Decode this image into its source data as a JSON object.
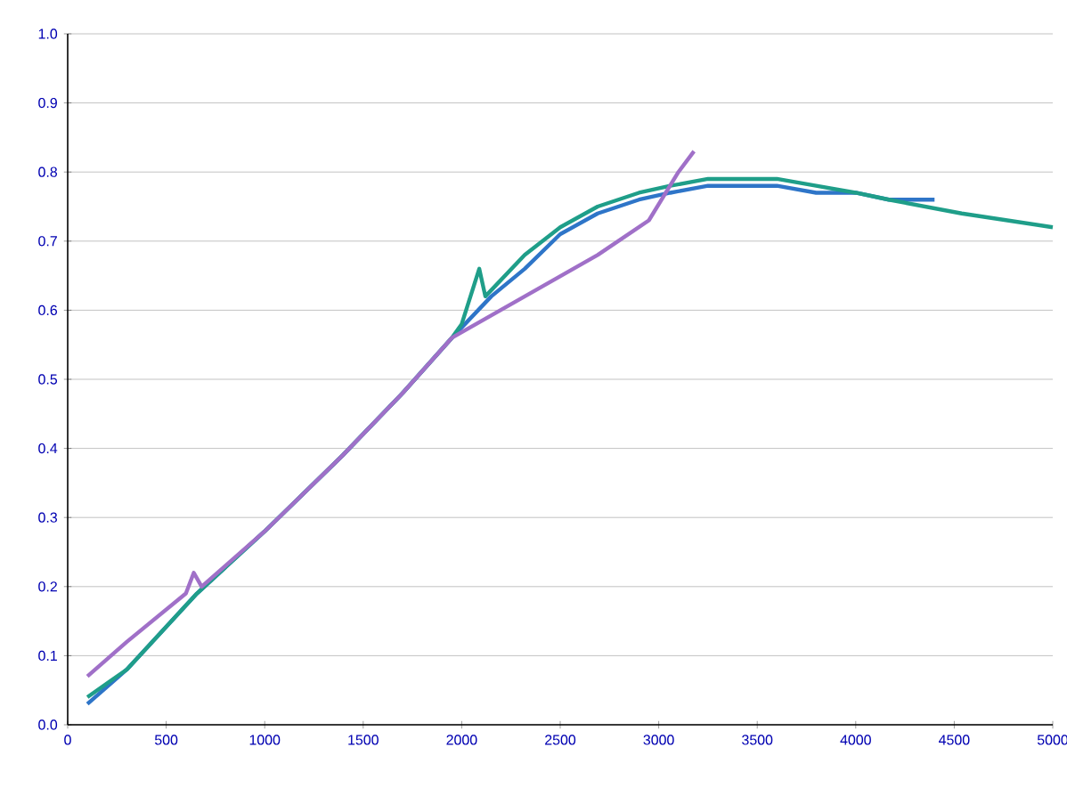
{
  "chart_data": {
    "type": "line",
    "xlim": [
      0,
      5000
    ],
    "ylim": [
      0,
      1.0
    ],
    "xticks": [
      0,
      500,
      1000,
      1500,
      2000,
      2500,
      3000,
      3500,
      4000,
      4500,
      5000
    ],
    "yticks": [
      {
        "value": 0,
        "label": "0.0"
      },
      {
        "value": 0.1,
        "label": "0.1"
      },
      {
        "value": 0.2,
        "label": "0.2"
      },
      {
        "value": 0.3,
        "label": "0.3"
      },
      {
        "value": 0.4,
        "label": "0.4"
      },
      {
        "value": 0.5,
        "label": "0.5"
      },
      {
        "value": 0.6,
        "label": "0.6"
      },
      {
        "value": 0.7,
        "label": "0.7"
      },
      {
        "value": 0.8,
        "label": "0.8"
      },
      {
        "value": 0.9,
        "label": "0.9"
      },
      {
        "value": 1.0,
        "label": "1.0"
      }
    ],
    "grid": "y",
    "marker": "none",
    "line_style": "solid",
    "series": [
      {
        "color": "#2e75c8",
        "x": [
          100,
          300,
          656,
          1000,
          1396,
          1700,
          1950,
          2150,
          2320,
          2500,
          2690,
          2900,
          3059,
          3250,
          3429,
          3600,
          3799,
          4000,
          4168,
          4400
        ],
        "values": [
          0.03,
          0.08,
          0.19,
          0.28,
          0.39,
          0.48,
          0.56,
          0.62,
          0.66,
          0.71,
          0.74,
          0.76,
          0.77,
          0.78,
          0.78,
          0.78,
          0.77,
          0.77,
          0.76,
          0.76
        ]
      },
      {
        "color": "#1f9e89",
        "x": [
          100,
          300,
          656,
          1000,
          1396,
          1700,
          1950,
          2000,
          2089,
          2120,
          2320,
          2500,
          2690,
          2900,
          3059,
          3250,
          3429,
          3600,
          3799,
          4000,
          4168,
          4538,
          5000
        ],
        "values": [
          0.04,
          0.08,
          0.19,
          0.28,
          0.39,
          0.48,
          0.56,
          0.58,
          0.66,
          0.62,
          0.68,
          0.72,
          0.75,
          0.77,
          0.78,
          0.79,
          0.79,
          0.79,
          0.78,
          0.77,
          0.76,
          0.74,
          0.72
        ]
      },
      {
        "color": "#a070c8",
        "x": [
          100,
          300,
          600,
          640,
          680,
          1000,
          1396,
          1700,
          1950,
          2320,
          2690,
          2950,
          3100,
          3179
        ],
        "values": [
          0.07,
          0.12,
          0.19,
          0.22,
          0.2,
          0.28,
          0.39,
          0.48,
          0.56,
          0.62,
          0.68,
          0.73,
          0.8,
          0.83
        ]
      }
    ]
  }
}
